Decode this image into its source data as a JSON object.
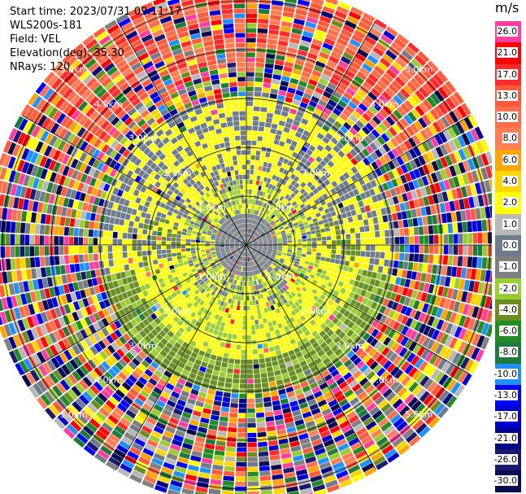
{
  "header": {
    "start_time": "Start time: 2023/07/31 09:11:17",
    "station": "WLS200s-181",
    "field": "Field: VEL",
    "elevation": "Elevation(deg): 35.30",
    "nrays": "NRays: 120"
  },
  "colorbar": {
    "unit": "m/s",
    "ticks": [
      "26.0",
      "21.0",
      "17.0",
      "13.0",
      "10.0",
      "8.0",
      "6.0",
      "4.0",
      "2.0",
      "1.0",
      "0.0",
      "-1.0",
      "-2.0",
      "-4.0",
      "-6.0",
      "-8.0",
      "-10.0",
      "-13.0",
      "-17.0",
      "-21.0",
      "-26.0",
      "-30.0"
    ],
    "colors": [
      "#ff3ea0",
      "#ff0000",
      "#ff2a2a",
      "#ff5a3a",
      "#ff6e4a",
      "#ff7e56",
      "#ffa500",
      "#ffd700",
      "#ffff00",
      "#b8b8b8",
      "#6e7b8a",
      "#808080",
      "#9acd32",
      "#6b8e23",
      "#228b22",
      "#1e7b3c",
      "#1e90ff",
      "#0000ff",
      "#0000cd",
      "#00008b",
      "#191970",
      "#0a0a50"
    ]
  },
  "chart_data": {
    "type": "heatmap",
    "projection": "polar-ppi",
    "nrays": 120,
    "range_rings_km": [
      1.0,
      2.0,
      3.0,
      4.0,
      5.0
    ],
    "range_ring_labels": [
      "1.0km",
      "2.0km",
      "3.0km",
      "4.0km",
      "5.0km"
    ],
    "max_range_km": 5.3,
    "field": "VEL",
    "units": "m/s",
    "zones_by_range_km": [
      {
        "from": 0.0,
        "to": 0.6,
        "dominant": [
          0.0,
          -1.0
        ]
      },
      {
        "from": 0.6,
        "to": 1.3,
        "dominant": [
          -2.0,
          0.0,
          2.0
        ]
      },
      {
        "from": 1.3,
        "to": 2.3,
        "dominant": [
          2.0,
          0.0,
          -4.0
        ]
      },
      {
        "from": 2.3,
        "to": 3.0,
        "dominant": [
          -4.0,
          0.0,
          2.0
        ]
      },
      {
        "from": 3.0,
        "to": 5.3,
        "dominant": "noise"
      }
    ]
  }
}
